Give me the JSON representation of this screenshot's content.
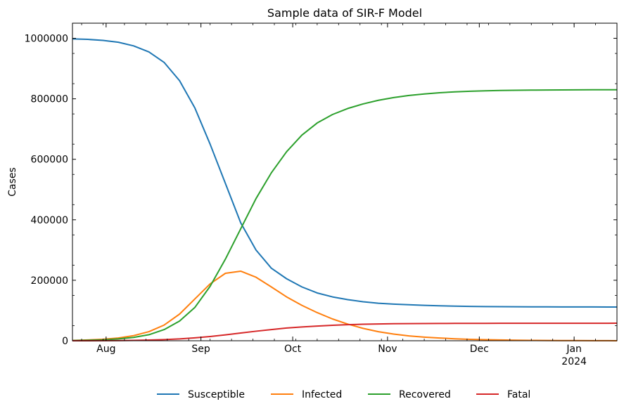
{
  "chart_data": {
    "type": "line",
    "title": "Sample data of SIR-F Model",
    "xlabel": "",
    "ylabel": "Cases",
    "x_start": "2023-07-21",
    "x_end": "2024-01-15",
    "ylim": [
      0,
      1050000
    ],
    "y_ticks": [
      0,
      200000,
      400000,
      600000,
      800000,
      1000000
    ],
    "x_ticks": [
      {
        "date": "2023-08-01",
        "label": "Aug",
        "sublabel": ""
      },
      {
        "date": "2023-09-01",
        "label": "Sep",
        "sublabel": ""
      },
      {
        "date": "2023-10-01",
        "label": "Oct",
        "sublabel": ""
      },
      {
        "date": "2023-11-01",
        "label": "Nov",
        "sublabel": ""
      },
      {
        "date": "2023-12-01",
        "label": "Dec",
        "sublabel": ""
      },
      {
        "date": "2024-01-01",
        "label": "Jan",
        "sublabel": "2024"
      }
    ],
    "grid": false,
    "legend_position": "bottom",
    "x": [
      "2023-07-21",
      "2023-07-26",
      "2023-07-31",
      "2023-08-05",
      "2023-08-10",
      "2023-08-15",
      "2023-08-20",
      "2023-08-25",
      "2023-08-30",
      "2023-09-04",
      "2023-09-09",
      "2023-09-14",
      "2023-09-19",
      "2023-09-24",
      "2023-09-29",
      "2023-10-04",
      "2023-10-09",
      "2023-10-14",
      "2023-10-19",
      "2023-10-24",
      "2023-10-29",
      "2023-11-03",
      "2023-11-08",
      "2023-11-13",
      "2023-11-18",
      "2023-11-23",
      "2023-11-28",
      "2023-12-03",
      "2023-12-08",
      "2023-12-13",
      "2023-12-18",
      "2023-12-23",
      "2023-12-28",
      "2024-01-02",
      "2024-01-07",
      "2024-01-12",
      "2024-01-15"
    ],
    "series": [
      {
        "name": "Susceptible",
        "color": "#1f77b4",
        "values": [
          998000,
          996500,
          993000,
          987000,
          975000,
          955000,
          920000,
          860000,
          770000,
          650000,
          520000,
          390000,
          300000,
          240000,
          205000,
          178000,
          158000,
          145000,
          136000,
          129000,
          124000,
          121000,
          119000,
          117000,
          115500,
          114500,
          113500,
          113000,
          112700,
          112400,
          112200,
          112000,
          111900,
          111800,
          111700,
          111600,
          111500
        ]
      },
      {
        "name": "Infected",
        "color": "#ff7f0e",
        "values": [
          1000,
          2500,
          5000,
          9000,
          17000,
          30000,
          52000,
          88000,
          138000,
          188000,
          223000,
          230000,
          210000,
          178000,
          145000,
          117000,
          93000,
          72000,
          55000,
          41000,
          30000,
          22000,
          16000,
          12000,
          9000,
          6500,
          4700,
          3400,
          2500,
          1800,
          1300,
          900,
          650,
          450,
          300,
          200,
          150
        ]
      },
      {
        "name": "Recovered",
        "color": "#2ca02c",
        "values": [
          500,
          1500,
          3000,
          6000,
          11000,
          20000,
          37000,
          65000,
          110000,
          180000,
          270000,
          370000,
          470000,
          555000,
          625000,
          680000,
          720000,
          748000,
          768000,
          783000,
          795000,
          804000,
          811000,
          816000,
          820000,
          823000,
          825000,
          826500,
          827500,
          828200,
          828700,
          829100,
          829400,
          829600,
          829800,
          829900,
          830000
        ]
      },
      {
        "name": "Fatal",
        "color": "#d62728",
        "values": [
          0,
          100,
          300,
          600,
          1200,
          2200,
          3800,
          6000,
          9500,
          14000,
          19500,
          25500,
          31500,
          37000,
          42000,
          45500,
          48500,
          51000,
          53000,
          54500,
          55500,
          56200,
          56700,
          57000,
          57200,
          57400,
          57500,
          57600,
          57700,
          57700,
          57800,
          57800,
          57800,
          57900,
          57900,
          57900,
          58000
        ]
      }
    ]
  }
}
